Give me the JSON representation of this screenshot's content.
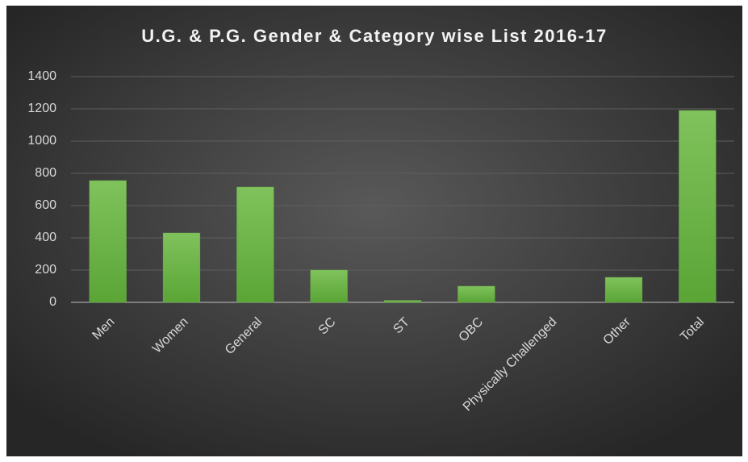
{
  "chart_data": {
    "type": "bar",
    "title": "U.G. & P.G. Gender & Category wise List 2016-17",
    "categories": [
      "Men",
      "Women",
      "General",
      "SC",
      "ST",
      "OBC",
      "Physically Challenged",
      "Other",
      "Total"
    ],
    "values": [
      755,
      430,
      715,
      200,
      12,
      100,
      0,
      155,
      1190
    ],
    "color": "#6ab04c",
    "ylim": [
      0,
      1400
    ],
    "yticks": [
      0,
      200,
      400,
      600,
      800,
      1000,
      1200,
      1400
    ],
    "grid": true
  }
}
